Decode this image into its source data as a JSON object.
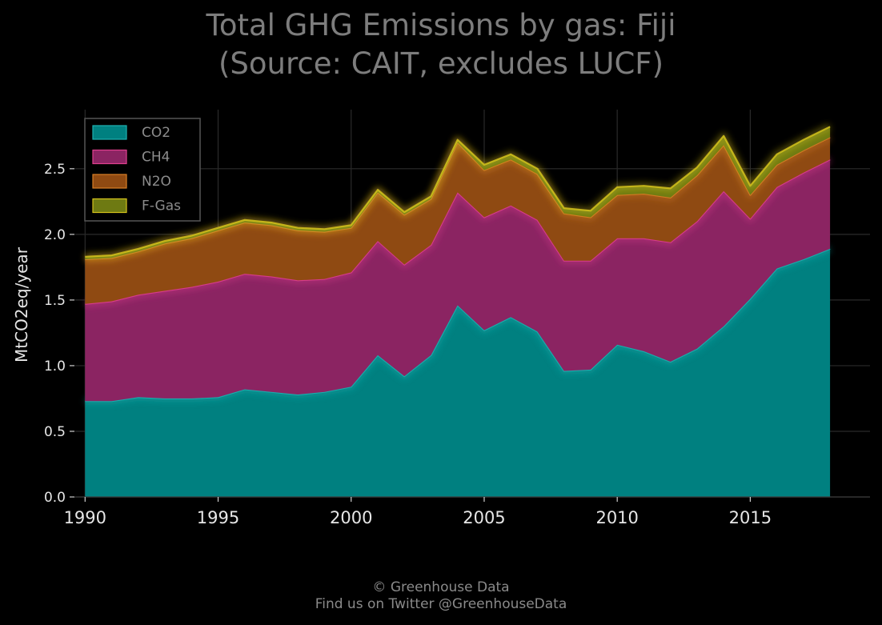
{
  "chart_data": {
    "type": "area",
    "stacked": true,
    "title_lines": [
      "Total GHG Emissions by gas: Fiji",
      "(Source: CAIT, excludes LUCF)"
    ],
    "xlabel": "",
    "ylabel": "MtCO2eq/year",
    "xlim": [
      1989.6,
      2019.5
    ],
    "ylim": [
      0,
      2.95
    ],
    "x_ticks": [
      1990,
      1995,
      2000,
      2005,
      2010,
      2015
    ],
    "y_ticks": [
      "0.0",
      "0.5",
      "1.0",
      "1.5",
      "2.0",
      "2.5"
    ],
    "grid": true,
    "legend_position": "top-left",
    "x": [
      1990,
      1991,
      1992,
      1993,
      1994,
      1995,
      1996,
      1997,
      1998,
      1999,
      2000,
      2001,
      2002,
      2003,
      2004,
      2005,
      2006,
      2007,
      2008,
      2009,
      2010,
      2011,
      2012,
      2013,
      2014,
      2015,
      2016,
      2017,
      2018
    ],
    "series": [
      {
        "name": "CO2",
        "color": "#008080",
        "line_color": "#1fb3b3",
        "values": [
          0.73,
          0.73,
          0.76,
          0.75,
          0.75,
          0.76,
          0.82,
          0.8,
          0.78,
          0.8,
          0.84,
          1.08,
          0.92,
          1.08,
          1.46,
          1.27,
          1.37,
          1.26,
          0.96,
          0.97,
          1.16,
          1.11,
          1.03,
          1.13,
          1.3,
          1.51,
          1.74,
          1.81,
          1.89
        ]
      },
      {
        "name": "CH4",
        "color": "#8b2462",
        "line_color": "#e0408f",
        "values": [
          0.74,
          0.76,
          0.78,
          0.82,
          0.85,
          0.88,
          0.88,
          0.88,
          0.87,
          0.86,
          0.87,
          0.87,
          0.85,
          0.84,
          0.86,
          0.86,
          0.85,
          0.85,
          0.84,
          0.83,
          0.81,
          0.86,
          0.91,
          0.97,
          1.03,
          0.61,
          0.62,
          0.66,
          0.68
        ]
      },
      {
        "name": "N2O",
        "color": "#8f4a12",
        "line_color": "#d97f26",
        "values": [
          0.34,
          0.33,
          0.33,
          0.36,
          0.37,
          0.39,
          0.39,
          0.39,
          0.38,
          0.36,
          0.34,
          0.37,
          0.38,
          0.35,
          0.38,
          0.36,
          0.35,
          0.35,
          0.36,
          0.33,
          0.33,
          0.34,
          0.34,
          0.35,
          0.35,
          0.18,
          0.17,
          0.17,
          0.17
        ]
      },
      {
        "name": "F-Gas",
        "color": "#6e7a12",
        "line_color": "#d4c21c",
        "values": [
          0.02,
          0.02,
          0.02,
          0.02,
          0.02,
          0.02,
          0.02,
          0.02,
          0.02,
          0.02,
          0.02,
          0.02,
          0.02,
          0.02,
          0.02,
          0.04,
          0.04,
          0.04,
          0.04,
          0.05,
          0.06,
          0.06,
          0.07,
          0.06,
          0.07,
          0.07,
          0.08,
          0.08,
          0.08
        ]
      }
    ]
  },
  "footer": {
    "line1": "© Greenhouse Data",
    "line2": "Find us on Twitter @GreenhouseData"
  }
}
